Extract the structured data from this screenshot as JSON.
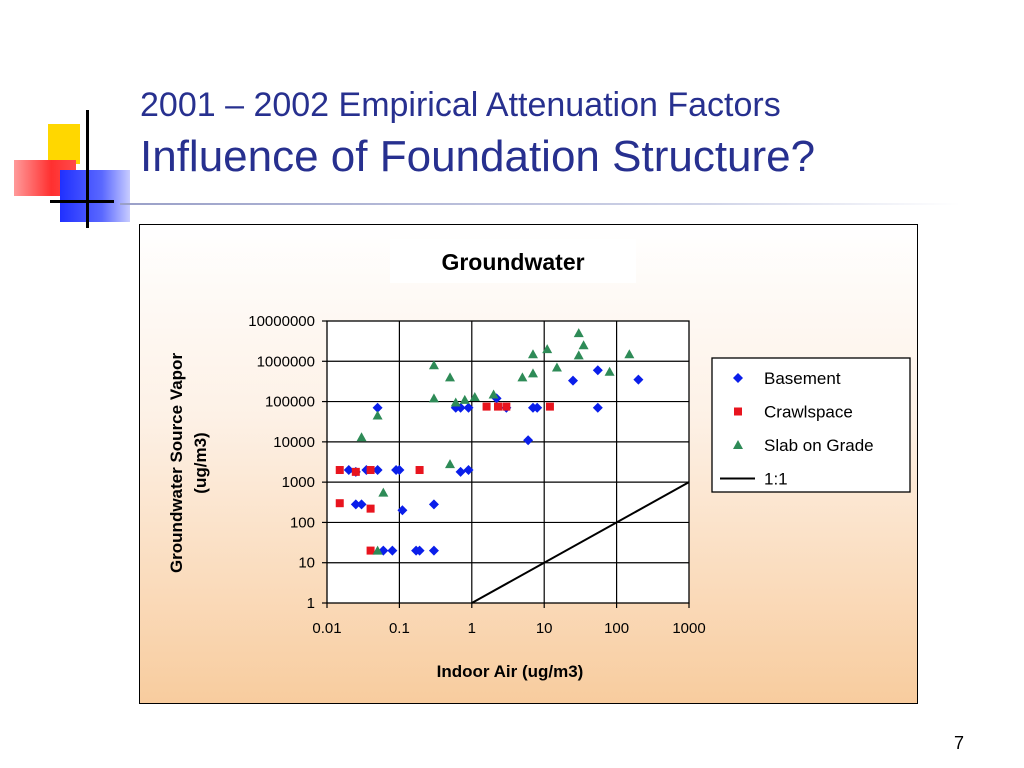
{
  "slide": {
    "title_line1": "2001 – 2002 Empirical Attenuation Factors",
    "title_line2": "Influence of Foundation Structure?",
    "page_number": "7"
  },
  "colors": {
    "title": "#27308f",
    "basement": "#0a1eea",
    "crawlspace": "#e8141e",
    "slab": "#2e8b57"
  },
  "chart_data": {
    "type": "scatter",
    "title": "Groundwater",
    "xlabel": "Indoor Air (ug/m3)",
    "ylabel_line1": "Groundwater Source Vapor",
    "ylabel_line2": "(ug/m3)",
    "xscale": "log",
    "yscale": "log",
    "xlim": [
      0.01,
      1000
    ],
    "ylim": [
      1,
      10000000
    ],
    "xticks": [
      "0.01",
      "0.1",
      "1",
      "10",
      "100",
      "1000"
    ],
    "yticks": [
      "1",
      "10",
      "100",
      "1000",
      "10000",
      "100000",
      "1000000",
      "10000000"
    ],
    "grid": true,
    "legend_position": "right",
    "series": [
      {
        "name": "Basement",
        "marker": "diamond",
        "color": "#0a1eea",
        "points": [
          [
            0.02,
            2000
          ],
          [
            0.025,
            1800
          ],
          [
            0.035,
            2000
          ],
          [
            0.05,
            2000
          ],
          [
            0.025,
            280
          ],
          [
            0.03,
            280
          ],
          [
            0.05,
            70000
          ],
          [
            0.09,
            2000
          ],
          [
            0.1,
            2000
          ],
          [
            0.11,
            200
          ],
          [
            0.06,
            20
          ],
          [
            0.08,
            20
          ],
          [
            0.17,
            20
          ],
          [
            0.19,
            20
          ],
          [
            0.3,
            20
          ],
          [
            0.3,
            280
          ],
          [
            0.6,
            70000
          ],
          [
            0.7,
            70000
          ],
          [
            0.9,
            70000
          ],
          [
            0.7,
            1800
          ],
          [
            0.9,
            2000
          ],
          [
            2.2,
            120000
          ],
          [
            3,
            70000
          ],
          [
            6,
            11000
          ],
          [
            7,
            70000
          ],
          [
            8,
            70000
          ],
          [
            25,
            330000
          ],
          [
            55,
            600000
          ],
          [
            55,
            70000
          ],
          [
            200,
            350000
          ]
        ]
      },
      {
        "name": "Crawlspace",
        "marker": "square",
        "color": "#e8141e",
        "points": [
          [
            0.015,
            2000
          ],
          [
            0.015,
            300
          ],
          [
            0.025,
            1800
          ],
          [
            0.04,
            2000
          ],
          [
            0.04,
            220
          ],
          [
            0.04,
            20
          ],
          [
            0.19,
            2000
          ],
          [
            1.6,
            75000
          ],
          [
            2.3,
            75000
          ],
          [
            3,
            75000
          ],
          [
            12,
            75000
          ]
        ]
      },
      {
        "name": "Slab on Grade",
        "marker": "triangle",
        "color": "#2e8b57",
        "points": [
          [
            0.03,
            13000
          ],
          [
            0.05,
            45000
          ],
          [
            0.06,
            550
          ],
          [
            0.05,
            20
          ],
          [
            0.3,
            800000
          ],
          [
            0.3,
            120000
          ],
          [
            0.5,
            400000
          ],
          [
            0.6,
            95000
          ],
          [
            0.5,
            2800
          ],
          [
            0.8,
            110000
          ],
          [
            1.1,
            130000
          ],
          [
            2,
            150000
          ],
          [
            5,
            400000
          ],
          [
            7,
            500000
          ],
          [
            7,
            1500000
          ],
          [
            11,
            2000000
          ],
          [
            15,
            700000
          ],
          [
            30,
            5000000
          ],
          [
            30,
            1400000
          ],
          [
            35,
            2500000
          ],
          [
            80,
            550000
          ],
          [
            150,
            1500000
          ]
        ]
      },
      {
        "name": "1:1",
        "marker": "line",
        "color": "#000000",
        "points": [
          [
            1,
            1
          ],
          [
            1000,
            1000
          ]
        ]
      }
    ]
  }
}
